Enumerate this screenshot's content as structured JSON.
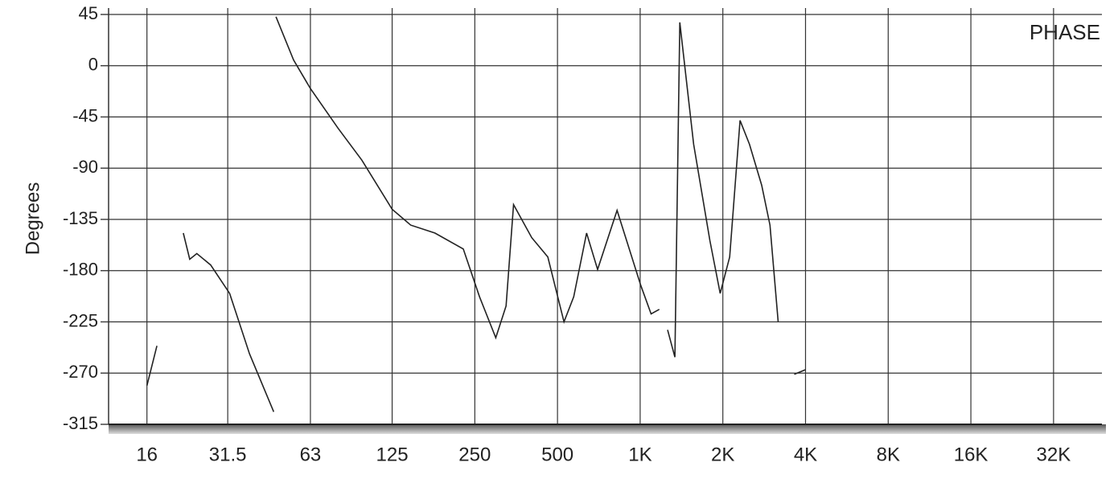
{
  "chart_data": {
    "type": "line",
    "annotation": "PHASE",
    "ylabel": "Degrees",
    "xscale": "log",
    "xlim": [
      11.6,
      48000
    ],
    "ylim": [
      -315,
      45
    ],
    "xticks": [
      16,
      31.5,
      63,
      125,
      250,
      500,
      {
        "value": 1000,
        "label": "1K"
      },
      {
        "value": 2000,
        "label": "2K"
      },
      {
        "value": 4000,
        "label": "4K"
      },
      {
        "value": 8000,
        "label": "8K"
      },
      {
        "value": 16000,
        "label": "16K"
      },
      {
        "value": 32000,
        "label": "32K"
      }
    ],
    "yticks": [
      45,
      0,
      -45,
      -90,
      -135,
      -180,
      -225,
      -270,
      -315
    ],
    "grid": true,
    "color": "#222222",
    "x": [
      16,
      17.4,
      null,
      21.7,
      22.9,
      24.3,
      27.3,
      32,
      37.8,
      46.3,
      null,
      47.2,
      54.7,
      63,
      79.5,
      97,
      125,
      146,
      179,
      227,
      260,
      298,
      325,
      346,
      403,
      461,
      528,
      573,
      638,
      700,
      824,
      1005,
      1096,
      1174,
      null,
      1258,
      1338,
      1394,
      1566,
      1795,
      1956,
      2118,
      2310,
      2500,
      2770,
      2970,
      3180,
      null,
      3640,
      4000
    ],
    "values": [
      -281,
      -246,
      null,
      -147,
      -170,
      -165,
      -175,
      -200,
      -253,
      -304,
      null,
      43,
      5,
      -20,
      -55,
      -83,
      -126,
      -140,
      -147,
      -161,
      -203,
      -239,
      -211,
      -122,
      -151,
      -168,
      -225,
      -203,
      -147,
      -179,
      -127,
      -193,
      -218,
      -214,
      null,
      -232,
      -256,
      38,
      -69,
      -154,
      -200,
      -168,
      -48,
      -69,
      -105,
      -140,
      -225,
      null,
      -271,
      -267
    ]
  }
}
